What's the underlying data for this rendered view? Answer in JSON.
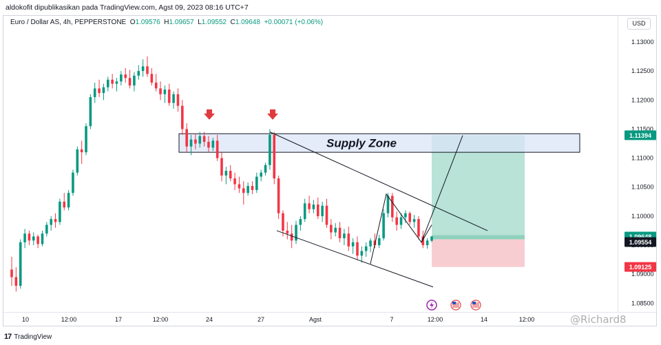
{
  "caption": "aldokofit dipublikasikan pada TradingView.com, Agst 09, 2023 08:16 UTC+7",
  "legend": {
    "symbol": "Euro / Dollar AS, 4h, PEPPERSTONE",
    "open_label": "O",
    "open": "1.09576",
    "high_label": "H",
    "high": "1.09657",
    "low_label": "L",
    "low": "1.09552",
    "close_label": "C",
    "close": "1.09648",
    "change": "+0.00071 (+0.06%)"
  },
  "currency_badge": "USD",
  "brand": {
    "logo": "17",
    "name": "TradingView"
  },
  "watermark": "@Richard8",
  "colors": {
    "up": "#089981",
    "down": "#f23645",
    "supply_fill": "#dbe4f7",
    "tp_fill": "#b8e3d6",
    "sl_fill": "#f8cdd1",
    "arrow": "#e03a3e"
  },
  "chart_data": {
    "type": "candlestick",
    "title": "",
    "ylim": [
      1.0835,
      1.1345
    ],
    "y_ticks": [
      "1.13000",
      "1.12500",
      "1.12000",
      "1.11500",
      "1.11000",
      "1.10500",
      "1.10000",
      "1.09500",
      "1.09000",
      "1.08500"
    ],
    "x_ticks": [
      "10",
      "12:00",
      "17",
      "12:00",
      "24",
      "27",
      "Agst",
      "7",
      "12:00",
      "14",
      "12:00"
    ],
    "price_labels": [
      {
        "text": "1.11394",
        "value": 1.11394,
        "color": "#089981"
      },
      {
        "text": "1.09648",
        "value": 1.09648,
        "color": "#089981"
      },
      {
        "text": "1.09554",
        "value": 1.09554,
        "color": "#131722"
      },
      {
        "text": "1.09125",
        "value": 1.09125,
        "color": "#f23645"
      }
    ],
    "supply_zone": {
      "label": "Supply Zone",
      "top": 1.1142,
      "bottom": 1.111
    },
    "take_profit_zone": {
      "top": 1.11394,
      "bottom": 1.09648
    },
    "stop_loss_zone": {
      "top": 1.096,
      "bottom": 1.09125
    },
    "ohlc": [
      [
        1.0908,
        1.093,
        1.088,
        1.0895
      ],
      [
        1.0895,
        1.0912,
        1.087,
        1.088
      ],
      [
        1.088,
        1.096,
        1.0875,
        1.0955
      ],
      [
        1.0955,
        1.0978,
        1.0945,
        1.097
      ],
      [
        1.097,
        1.0975,
        1.095,
        1.0958
      ],
      [
        1.0958,
        1.0972,
        1.095,
        1.0965
      ],
      [
        1.0965,
        1.0968,
        1.0945,
        1.0952
      ],
      [
        1.0952,
        1.0975,
        1.0948,
        1.097
      ],
      [
        1.097,
        1.099,
        1.0965,
        1.0985
      ],
      [
        1.0985,
        1.1,
        1.0975,
        1.0995
      ],
      [
        1.0995,
        1.1005,
        1.098,
        1.099
      ],
      [
        1.099,
        1.103,
        1.0985,
        1.1025
      ],
      [
        1.1025,
        1.104,
        1.101,
        1.1015
      ],
      [
        1.1015,
        1.1045,
        1.101,
        1.104
      ],
      [
        1.104,
        1.108,
        1.1035,
        1.1075
      ],
      [
        1.1075,
        1.112,
        1.107,
        1.1115
      ],
      [
        1.1115,
        1.113,
        1.109,
        1.111
      ],
      [
        1.111,
        1.116,
        1.1105,
        1.1155
      ],
      [
        1.1155,
        1.121,
        1.115,
        1.1205
      ],
      [
        1.1205,
        1.123,
        1.1195,
        1.122
      ],
      [
        1.122,
        1.1235,
        1.1205,
        1.1212
      ],
      [
        1.1212,
        1.1228,
        1.12,
        1.1222
      ],
      [
        1.1222,
        1.124,
        1.1215,
        1.1235
      ],
      [
        1.1235,
        1.1245,
        1.122,
        1.1228
      ],
      [
        1.1228,
        1.1238,
        1.1215,
        1.1232
      ],
      [
        1.1232,
        1.125,
        1.1225,
        1.1244
      ],
      [
        1.1244,
        1.1255,
        1.123,
        1.1238
      ],
      [
        1.1238,
        1.1252,
        1.122,
        1.1225
      ],
      [
        1.1225,
        1.1248,
        1.1215,
        1.1242
      ],
      [
        1.1242,
        1.126,
        1.1235,
        1.125
      ],
      [
        1.125,
        1.127,
        1.124,
        1.1258
      ],
      [
        1.1258,
        1.1275,
        1.124,
        1.1245
      ],
      [
        1.1245,
        1.1255,
        1.1225,
        1.123
      ],
      [
        1.123,
        1.1245,
        1.1215,
        1.122
      ],
      [
        1.122,
        1.1232,
        1.12,
        1.121
      ],
      [
        1.121,
        1.1225,
        1.1195,
        1.1218
      ],
      [
        1.1218,
        1.1228,
        1.119,
        1.1195
      ],
      [
        1.1195,
        1.1215,
        1.1185,
        1.121
      ],
      [
        1.121,
        1.122,
        1.118,
        1.119
      ],
      [
        1.119,
        1.12,
        1.114,
        1.115
      ],
      [
        1.115,
        1.116,
        1.111,
        1.112
      ],
      [
        1.112,
        1.114,
        1.1105,
        1.1132
      ],
      [
        1.1132,
        1.1142,
        1.1115,
        1.1125
      ],
      [
        1.1125,
        1.1145,
        1.1118,
        1.1138
      ],
      [
        1.1138,
        1.1145,
        1.112,
        1.1128
      ],
      [
        1.1128,
        1.1138,
        1.111,
        1.1118
      ],
      [
        1.1118,
        1.1135,
        1.1112,
        1.113
      ],
      [
        1.113,
        1.114,
        1.1095,
        1.11
      ],
      [
        1.11,
        1.111,
        1.106,
        1.107
      ],
      [
        1.107,
        1.1085,
        1.1055,
        1.1078
      ],
      [
        1.1078,
        1.1088,
        1.106,
        1.1065
      ],
      [
        1.1065,
        1.1075,
        1.1045,
        1.1055
      ],
      [
        1.1055,
        1.1068,
        1.104,
        1.1048
      ],
      [
        1.1048,
        1.106,
        1.102,
        1.104
      ],
      [
        1.104,
        1.1058,
        1.1035,
        1.1052
      ],
      [
        1.1052,
        1.106,
        1.1038,
        1.1045
      ],
      [
        1.1045,
        1.1075,
        1.104,
        1.1068
      ],
      [
        1.1068,
        1.108,
        1.106,
        1.1075
      ],
      [
        1.1075,
        1.1092,
        1.107,
        1.1088
      ],
      [
        1.1088,
        1.115,
        1.108,
        1.114
      ],
      [
        1.114,
        1.1145,
        1.1055,
        1.1065
      ],
      [
        1.1065,
        1.107,
        1.0995,
        1.1005
      ],
      [
        1.1005,
        1.101,
        1.0965,
        1.0975
      ],
      [
        1.0975,
        1.099,
        1.096,
        1.097
      ],
      [
        1.097,
        1.0985,
        1.0945,
        1.0958
      ],
      [
        1.0958,
        1.0992,
        1.0952,
        1.0985
      ],
      [
        1.0985,
        1.1,
        1.0975,
        1.0995
      ],
      [
        1.0995,
        1.103,
        1.099,
        1.1022
      ],
      [
        1.1022,
        1.1035,
        1.1005,
        1.1012
      ],
      [
        1.1012,
        1.1028,
        1.1005,
        1.102
      ],
      [
        1.102,
        1.1032,
        1.0995,
        1.1
      ],
      [
        1.1,
        1.1025,
        1.099,
        1.1018
      ],
      [
        1.1018,
        1.103,
        1.098,
        1.0985
      ],
      [
        1.0985,
        1.0995,
        1.096,
        1.0972
      ],
      [
        1.0972,
        1.0988,
        1.0965,
        1.098
      ],
      [
        1.098,
        1.099,
        1.0955,
        1.0962
      ],
      [
        1.0962,
        1.0978,
        1.095,
        1.097
      ],
      [
        1.097,
        1.0982,
        1.094,
        1.0948
      ],
      [
        1.0948,
        1.0962,
        1.0935,
        1.0955
      ],
      [
        1.0955,
        1.0965,
        1.0925,
        1.0932
      ],
      [
        1.0932,
        1.0948,
        1.092,
        1.094
      ],
      [
        1.094,
        1.0955,
        1.093,
        1.0948
      ],
      [
        1.0948,
        1.0962,
        1.0938,
        1.0958
      ],
      [
        1.0958,
        1.097,
        1.0945,
        1.095
      ],
      [
        1.095,
        1.0968,
        1.0945,
        1.0962
      ],
      [
        1.0962,
        1.1012,
        1.0958,
        1.1005
      ],
      [
        1.1005,
        1.104,
        1.0998,
        1.1035
      ],
      [
        1.1035,
        1.104,
        1.099,
        1.0998
      ],
      [
        1.0998,
        1.1008,
        1.0975,
        1.0985
      ],
      [
        1.0985,
        1.1005,
        1.0978,
        1.0998
      ],
      [
        1.0998,
        1.101,
        1.0988,
        1.1005
      ],
      [
        1.1005,
        1.1008,
        1.0985,
        1.099
      ],
      [
        1.099,
        1.1002,
        1.098,
        1.0995
      ],
      [
        1.0995,
        1.1,
        1.096,
        1.0965
      ],
      [
        1.0965,
        1.0975,
        1.0945,
        1.095
      ],
      [
        1.095,
        1.0962,
        1.0944,
        1.0958
      ],
      [
        1.09576,
        1.09657,
        1.09552,
        1.09648
      ]
    ],
    "trend_lines": [
      {
        "name": "upper-wedge-line",
        "points": [
          [
            "2023-07-27",
            1.1145
          ],
          [
            "2023-08-10",
            1.0975
          ]
        ]
      },
      {
        "name": "lower-wedge-line",
        "points": [
          [
            "2023-07-28",
            1.0975
          ],
          [
            "2023-08-09",
            1.0878
          ]
        ]
      },
      {
        "name": "projection-line",
        "points": [
          [
            "2023-08-09",
            1.0965
          ],
          [
            "2023-08-10",
            1.1139
          ]
        ]
      }
    ],
    "markers": [
      {
        "name": "down-arrow-1",
        "value": 1.1155
      },
      {
        "name": "down-arrow-2",
        "value": 1.1155
      }
    ],
    "event_icons": [
      "lightning-icon",
      "us-flag-icon",
      "us-flag-icon"
    ]
  }
}
